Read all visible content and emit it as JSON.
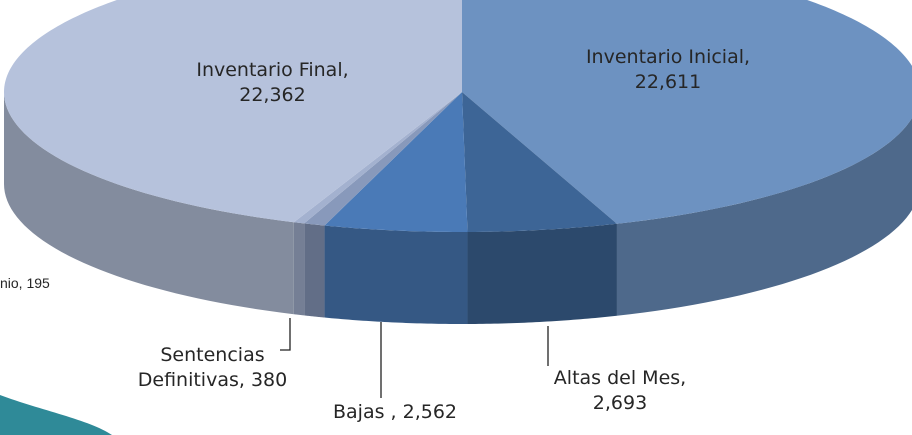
{
  "chart_data": {
    "type": "pie",
    "categories": [
      "Inventario Inicial,",
      "Altas del Mes,",
      "Bajas ,",
      "Sentencias Definitivas,",
      "nio,",
      "Inventario Final,"
    ],
    "values": [
      22611,
      2693,
      2562,
      380,
      195,
      22362
    ],
    "value_labels": [
      "22,611",
      "2,693",
      "2,562",
      "380",
      "195",
      "22,362"
    ],
    "colors": [
      "#6d92c1",
      "#3d6596",
      "#4a7ab7",
      "#8899bb",
      "#a3b1cf",
      "#b6c2dc"
    ],
    "three_d": true
  }
}
